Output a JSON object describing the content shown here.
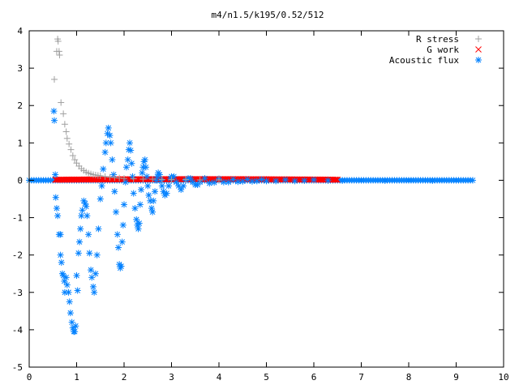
{
  "chart_data": {
    "type": "scatter",
    "title": "m4/n1.5/k195/0.52/512",
    "xlabel": "",
    "ylabel": "",
    "xlim": [
      0,
      10
    ],
    "ylim": [
      -5,
      4
    ],
    "xticks": [
      "0",
      "1",
      "2",
      "3",
      "4",
      "5",
      "6",
      "7",
      "8",
      "9",
      "10"
    ],
    "yticks": [
      "4",
      "3",
      "2",
      "1",
      "0",
      "-1",
      "-2",
      "-3",
      "-4",
      "-5"
    ],
    "grid": false,
    "legend_position": "top-right",
    "series": [
      {
        "name": "R stress",
        "marker": "plus",
        "color": "#a0a0a0",
        "points": [
          [
            0.53,
            2.7
          ],
          [
            0.58,
            3.45
          ],
          [
            0.6,
            3.78
          ],
          [
            0.61,
            3.72
          ],
          [
            0.63,
            3.45
          ],
          [
            0.64,
            3.35
          ],
          [
            0.67,
            2.08
          ],
          [
            0.72,
            1.78
          ],
          [
            0.75,
            1.5
          ],
          [
            0.78,
            1.3
          ],
          [
            0.8,
            1.12
          ],
          [
            0.84,
            0.97
          ],
          [
            0.88,
            0.82
          ],
          [
            0.92,
            0.66
          ],
          [
            0.96,
            0.55
          ],
          [
            1.0,
            0.46
          ],
          [
            1.05,
            0.38
          ],
          [
            1.1,
            0.31
          ],
          [
            1.15,
            0.26
          ],
          [
            1.2,
            0.22
          ],
          [
            1.25,
            0.19
          ],
          [
            1.3,
            0.17
          ],
          [
            1.35,
            0.15
          ],
          [
            1.4,
            0.14
          ],
          [
            1.45,
            0.13
          ],
          [
            1.5,
            0.12
          ],
          [
            1.6,
            0.1
          ],
          [
            1.7,
            0.08
          ],
          [
            1.8,
            0.07
          ],
          [
            1.9,
            0.06
          ],
          [
            2.0,
            0.05
          ],
          [
            2.2,
            0.04
          ],
          [
            2.4,
            0.03
          ],
          [
            2.6,
            0.03
          ],
          [
            2.8,
            0.02
          ],
          [
            3.0,
            0.02
          ],
          [
            3.3,
            0.02
          ],
          [
            3.6,
            0.01
          ],
          [
            4.0,
            0.01
          ]
        ]
      },
      {
        "name": "G work",
        "marker": "cross",
        "color": "#ff0000",
        "band": {
          "x_start": 0.55,
          "x_end": 6.5,
          "y_start": 0.0,
          "y_end": 0.03
        }
      },
      {
        "name": "Acoustic flux",
        "marker": "star",
        "color": "#0080ff",
        "baseline": {
          "x_start": 0.0,
          "x_end": 9.35,
          "y": 0.0
        },
        "points": [
          [
            0.52,
            1.85
          ],
          [
            0.53,
            1.6
          ],
          [
            0.55,
            0.15
          ],
          [
            0.56,
            -0.46
          ],
          [
            0.58,
            -0.75
          ],
          [
            0.6,
            -0.95
          ],
          [
            0.63,
            -1.45
          ],
          [
            0.66,
            -1.45
          ],
          [
            0.66,
            -2.0
          ],
          [
            0.68,
            -2.2
          ],
          [
            0.7,
            -2.5
          ],
          [
            0.72,
            -2.55
          ],
          [
            0.74,
            -2.7
          ],
          [
            0.75,
            -3.0
          ],
          [
            0.78,
            -2.6
          ],
          [
            0.8,
            -2.8
          ],
          [
            0.83,
            -3.0
          ],
          [
            0.85,
            -3.25
          ],
          [
            0.87,
            -3.55
          ],
          [
            0.9,
            -3.8
          ],
          [
            0.92,
            -3.95
          ],
          [
            0.94,
            -4.05
          ],
          [
            0.96,
            -4.05
          ],
          [
            0.98,
            -3.9
          ],
          [
            1.0,
            -2.55
          ],
          [
            1.02,
            -2.95
          ],
          [
            1.04,
            -1.95
          ],
          [
            1.06,
            -1.65
          ],
          [
            1.08,
            -1.3
          ],
          [
            1.1,
            -0.95
          ],
          [
            1.12,
            -0.8
          ],
          [
            1.15,
            -0.55
          ],
          [
            1.18,
            -0.62
          ],
          [
            1.2,
            -0.7
          ],
          [
            1.22,
            -0.95
          ],
          [
            1.25,
            -1.45
          ],
          [
            1.27,
            -1.95
          ],
          [
            1.3,
            -2.4
          ],
          [
            1.32,
            -2.6
          ],
          [
            1.35,
            -2.85
          ],
          [
            1.37,
            -3.0
          ],
          [
            1.4,
            -2.5
          ],
          [
            1.43,
            -2.0
          ],
          [
            1.46,
            -1.3
          ],
          [
            1.5,
            -0.5
          ],
          [
            1.53,
            -0.15
          ],
          [
            1.56,
            0.3
          ],
          [
            1.6,
            0.75
          ],
          [
            1.62,
            1.0
          ],
          [
            1.65,
            1.25
          ],
          [
            1.67,
            1.4
          ],
          [
            1.7,
            1.2
          ],
          [
            1.72,
            1.0
          ],
          [
            1.75,
            0.55
          ],
          [
            1.78,
            0.15
          ],
          [
            1.8,
            -0.3
          ],
          [
            1.83,
            -0.85
          ],
          [
            1.86,
            -1.45
          ],
          [
            1.88,
            -1.8
          ],
          [
            1.9,
            -2.25
          ],
          [
            1.92,
            -2.35
          ],
          [
            1.94,
            -2.3
          ],
          [
            1.96,
            -1.65
          ],
          [
            1.98,
            -1.2
          ],
          [
            2.0,
            -0.65
          ],
          [
            2.03,
            -0.05
          ],
          [
            2.05,
            0.35
          ],
          [
            2.08,
            0.55
          ],
          [
            2.1,
            0.82
          ],
          [
            2.12,
            1.0
          ],
          [
            2.14,
            0.8
          ],
          [
            2.16,
            0.45
          ],
          [
            2.18,
            0.1
          ],
          [
            2.2,
            -0.35
          ],
          [
            2.23,
            -0.75
          ],
          [
            2.26,
            -1.05
          ],
          [
            2.28,
            -1.2
          ],
          [
            2.3,
            -1.3
          ],
          [
            2.32,
            -1.15
          ],
          [
            2.34,
            -0.65
          ],
          [
            2.36,
            -0.25
          ],
          [
            2.38,
            0.2
          ],
          [
            2.4,
            0.35
          ],
          [
            2.42,
            0.5
          ],
          [
            2.44,
            0.55
          ],
          [
            2.46,
            0.35
          ],
          [
            2.48,
            0.1
          ],
          [
            2.5,
            -0.15
          ],
          [
            2.52,
            -0.4
          ],
          [
            2.55,
            -0.55
          ],
          [
            2.58,
            -0.75
          ],
          [
            2.6,
            -0.85
          ],
          [
            2.62,
            -0.55
          ],
          [
            2.65,
            -0.3
          ],
          [
            2.68,
            0.0
          ],
          [
            2.7,
            0.1
          ],
          [
            2.72,
            0.2
          ],
          [
            2.75,
            0.15
          ],
          [
            2.78,
            0.0
          ],
          [
            2.8,
            -0.15
          ],
          [
            2.83,
            -0.3
          ],
          [
            2.86,
            -0.4
          ],
          [
            2.9,
            -0.35
          ],
          [
            2.94,
            -0.15
          ],
          [
            2.98,
            0.05
          ],
          [
            3.0,
            0.1
          ],
          [
            3.05,
            0.1
          ],
          [
            3.1,
            -0.05
          ],
          [
            3.15,
            -0.15
          ],
          [
            3.2,
            -0.25
          ],
          [
            3.25,
            -0.15
          ],
          [
            3.3,
            0.0
          ],
          [
            3.35,
            0.05
          ],
          [
            3.4,
            0.05
          ],
          [
            3.45,
            -0.05
          ],
          [
            3.5,
            -0.12
          ],
          [
            3.55,
            -0.12
          ],
          [
            3.6,
            -0.05
          ],
          [
            3.7,
            0.05
          ],
          [
            3.8,
            -0.08
          ],
          [
            3.9,
            -0.06
          ],
          [
            4.0,
            0.04
          ],
          [
            4.1,
            -0.05
          ],
          [
            4.2,
            -0.05
          ],
          [
            4.3,
            0.02
          ],
          [
            4.4,
            -0.04
          ],
          [
            4.5,
            -0.03
          ],
          [
            4.6,
            0.02
          ],
          [
            4.7,
            -0.03
          ],
          [
            4.8,
            -0.02
          ],
          [
            4.9,
            0.02
          ],
          [
            5.0,
            -0.02
          ],
          [
            5.2,
            -0.02
          ],
          [
            5.4,
            0.01
          ],
          [
            5.6,
            -0.02
          ],
          [
            5.8,
            -0.01
          ],
          [
            6.0,
            0.01
          ],
          [
            6.3,
            -0.01
          ],
          [
            6.6,
            -0.01
          ],
          [
            7.0,
            0.0
          ],
          [
            7.5,
            -0.01
          ],
          [
            8.0,
            0.0
          ],
          [
            8.5,
            -0.01
          ],
          [
            9.0,
            0.0
          ]
        ]
      }
    ]
  }
}
